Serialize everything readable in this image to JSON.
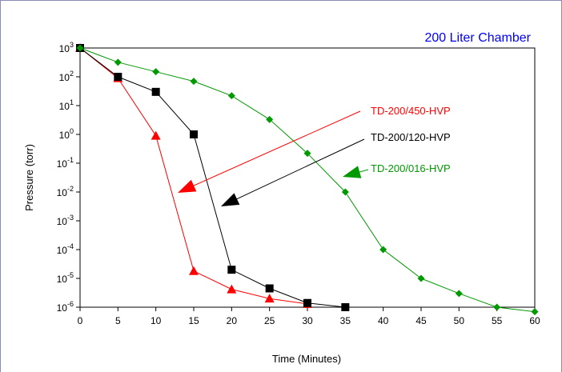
{
  "chart_data": {
    "type": "line",
    "title": "200 Liter Chamber",
    "title_color": "#0000ff",
    "xlabel": "Time (Minutes)",
    "ylabel": "Pressure (torr)",
    "xlim": [
      0,
      60
    ],
    "ylim_log10": [
      -6,
      3
    ],
    "y_scale": "log",
    "x_ticks": [
      0,
      5,
      10,
      15,
      20,
      25,
      30,
      35,
      40,
      45,
      50,
      55,
      60
    ],
    "y_tick_exponents": [
      3,
      2,
      1,
      0,
      -1,
      -2,
      -3,
      -4,
      -5,
      -6
    ],
    "y_tick_base": "10",
    "grid": false,
    "series": [
      {
        "name": "TD-200/450-HVP",
        "color": "#ff0000",
        "marker": "triangle",
        "x": [
          0,
          5,
          10,
          15,
          20,
          25,
          30
        ],
        "y": [
          1000,
          90,
          0.9,
          1.8e-05,
          4.2e-06,
          2e-06,
          1.3e-06
        ]
      },
      {
        "name": "TD-200/120-HVP",
        "color": "#000000",
        "marker": "square",
        "x": [
          0,
          5,
          10,
          15,
          20,
          25,
          30,
          35
        ],
        "y": [
          1000,
          100,
          30,
          1,
          2e-05,
          4.5e-06,
          1.4e-06,
          1e-06
        ]
      },
      {
        "name": "TD-200/016-HVP",
        "color": "#009900",
        "marker": "diamond",
        "x": [
          0,
          5,
          10,
          15,
          20,
          25,
          30,
          35,
          40,
          45,
          50,
          55,
          60
        ],
        "y": [
          1000,
          320,
          150,
          70,
          22,
          3.3,
          0.22,
          0.01,
          0.0001,
          1e-05,
          3e-06,
          1e-06,
          7e-07
        ]
      }
    ],
    "annotations": [
      {
        "series": "TD-200/450-HVP",
        "color": "#ff0000"
      },
      {
        "series": "TD-200/120-HVP",
        "color": "#000000"
      },
      {
        "series": "TD-200/016-HVP",
        "color": "#009900"
      }
    ]
  }
}
